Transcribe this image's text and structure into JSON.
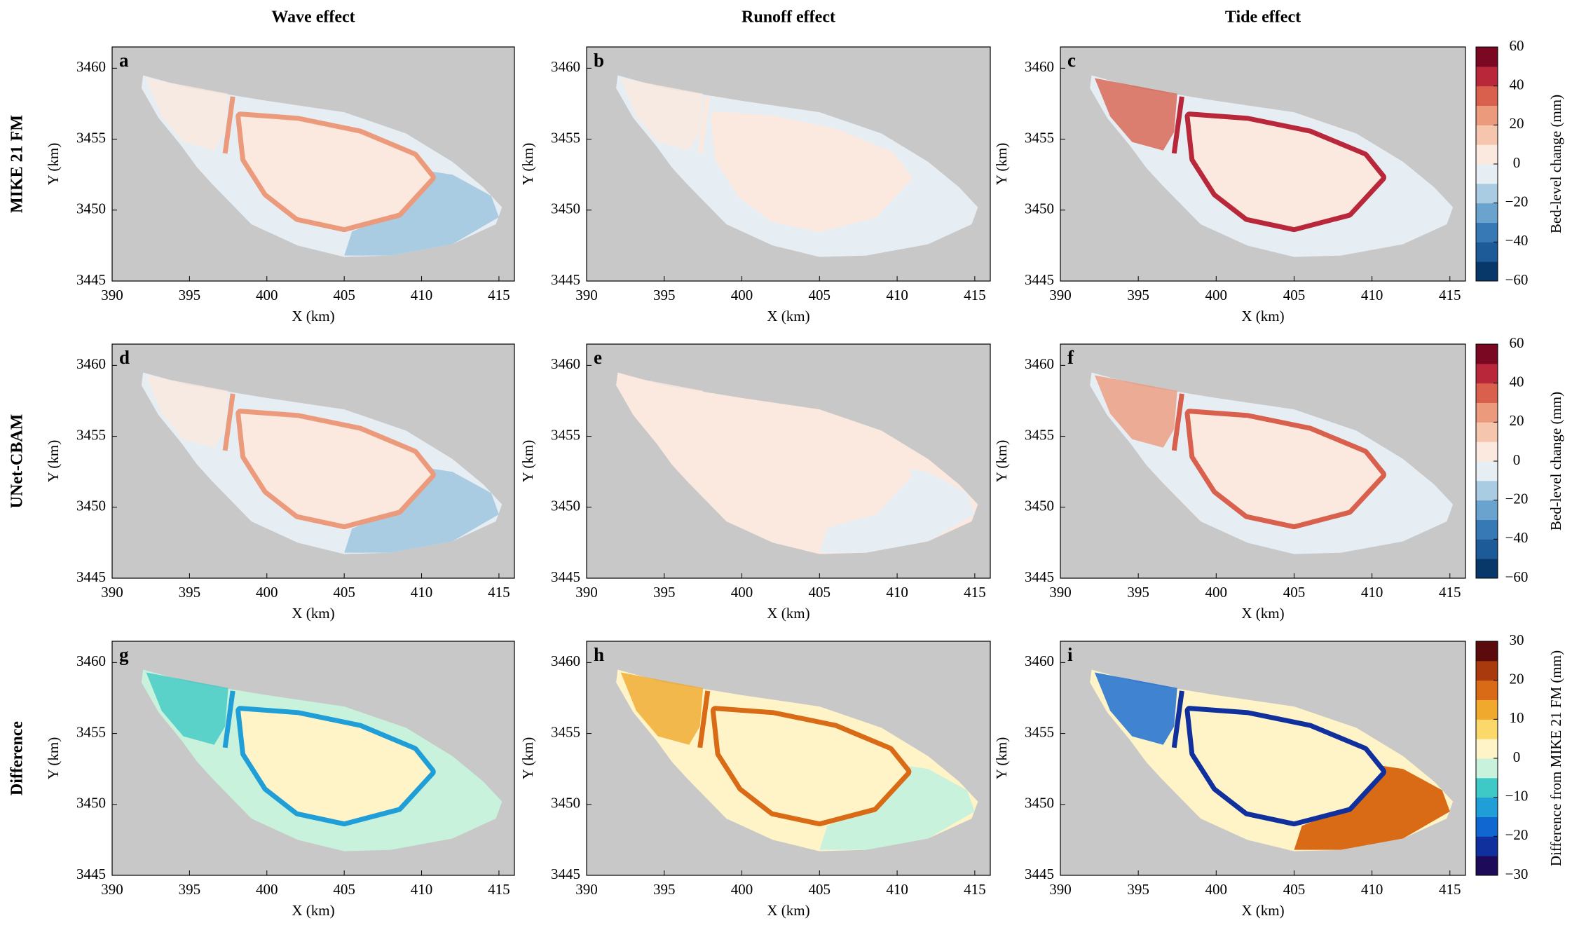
{
  "column_titles": [
    "Wave effect",
    "Runoff effect",
    "Tide effect"
  ],
  "row_labels": [
    "MIKE 21 FM",
    "UNet-CBAM",
    "Difference"
  ],
  "chart_data": [
    {
      "type": "contour",
      "panel": "a",
      "xlabel": "X (km)",
      "ylabel": "Y (km)",
      "xlim": [
        390,
        416
      ],
      "ylim": [
        3445,
        3461.5
      ],
      "xticks": [
        390,
        395,
        400,
        405,
        410,
        415
      ],
      "yticks": [
        3445,
        3450,
        3455,
        3460
      ]
    },
    {
      "type": "contour",
      "panel": "b",
      "xlabel": "X (km)",
      "ylabel": "Y (km)",
      "xlim": [
        390,
        416
      ],
      "ylim": [
        3445,
        3461.5
      ],
      "xticks": [
        390,
        395,
        400,
        405,
        410,
        415
      ],
      "yticks": [
        3445,
        3450,
        3455,
        3460
      ]
    },
    {
      "type": "contour",
      "panel": "c",
      "xlabel": "X (km)",
      "ylabel": "Y (km)",
      "xlim": [
        390,
        416
      ],
      "ylim": [
        3445,
        3461.5
      ],
      "xticks": [
        390,
        395,
        400,
        405,
        410,
        415
      ],
      "yticks": [
        3445,
        3450,
        3455,
        3460
      ]
    },
    {
      "type": "contour",
      "panel": "d",
      "xlabel": "X (km)",
      "ylabel": "Y (km)",
      "xlim": [
        390,
        416
      ],
      "ylim": [
        3445,
        3461.5
      ],
      "xticks": [
        390,
        395,
        400,
        405,
        410,
        415
      ],
      "yticks": [
        3445,
        3450,
        3455,
        3460
      ]
    },
    {
      "type": "contour",
      "panel": "e",
      "xlabel": "X (km)",
      "ylabel": "Y (km)",
      "xlim": [
        390,
        416
      ],
      "ylim": [
        3445,
        3461.5
      ],
      "xticks": [
        390,
        395,
        400,
        405,
        410,
        415
      ],
      "yticks": [
        3445,
        3450,
        3455,
        3460
      ]
    },
    {
      "type": "contour",
      "panel": "f",
      "xlabel": "X (km)",
      "ylabel": "Y (km)",
      "xlim": [
        390,
        416
      ],
      "ylim": [
        3445,
        3461.5
      ],
      "xticks": [
        390,
        395,
        400,
        405,
        410,
        415
      ],
      "yticks": [
        3445,
        3450,
        3455,
        3460
      ]
    },
    {
      "type": "contour",
      "panel": "g",
      "xlabel": "X (km)",
      "ylabel": "Y (km)",
      "xlim": [
        390,
        416
      ],
      "ylim": [
        3445,
        3461.5
      ],
      "xticks": [
        390,
        395,
        400,
        405,
        410,
        415
      ],
      "yticks": [
        3445,
        3450,
        3455,
        3460
      ]
    },
    {
      "type": "contour",
      "panel": "h",
      "xlabel": "X (km)",
      "ylabel": "Y (km)",
      "xlim": [
        390,
        416
      ],
      "ylim": [
        3445,
        3461.5
      ],
      "xticks": [
        390,
        395,
        400,
        405,
        410,
        415
      ],
      "yticks": [
        3445,
        3450,
        3455,
        3460
      ]
    },
    {
      "type": "contour",
      "panel": "i",
      "xlabel": "X (km)",
      "ylabel": "Y (km)",
      "xlim": [
        390,
        416
      ],
      "ylim": [
        3445,
        3461.5
      ],
      "xticks": [
        390,
        395,
        400,
        405,
        410,
        415
      ],
      "yticks": [
        3445,
        3450,
        3455,
        3460
      ]
    }
  ],
  "colorbars": [
    {
      "label": "Bed-level change (mm)",
      "lim": [
        -60,
        60
      ],
      "ticks": [
        {
          "value": -60,
          "label": "−60"
        },
        {
          "value": -40,
          "label": "−40"
        },
        {
          "value": -20,
          "label": "−20"
        },
        0,
        20,
        40,
        60
      ],
      "colors": [
        "#08386a",
        "#1c5b97",
        "#3679b4",
        "#6aa3cd",
        "#a9cce3",
        "#e6eef3",
        "#fbe8df",
        "#f6c5ad",
        "#ec9a7c",
        "#d8604d",
        "#b8283a",
        "#7a0822"
      ]
    },
    {
      "label": "Bed-level change (mm)",
      "lim": [
        -60,
        60
      ],
      "ticks": [
        {
          "value": -60,
          "label": "−60"
        },
        {
          "value": -40,
          "label": "−40"
        },
        {
          "value": -20,
          "label": "−20"
        },
        0,
        20,
        40,
        60
      ],
      "colors": [
        "#08386a",
        "#1c5b97",
        "#3679b4",
        "#6aa3cd",
        "#a9cce3",
        "#e6eef3",
        "#fbe8df",
        "#f6c5ad",
        "#ec9a7c",
        "#d8604d",
        "#b8283a",
        "#7a0822"
      ]
    },
    {
      "label": "Difference from MIKE 21 FM (mm)",
      "lim": [
        -30,
        30
      ],
      "ticks": [
        {
          "value": -30,
          "label": "−30"
        },
        {
          "value": -20,
          "label": "−20"
        },
        {
          "value": -10,
          "label": "−10"
        },
        0,
        10,
        20,
        30
      ],
      "colors": [
        "#1d0b5a",
        "#10309e",
        "#1067d2",
        "#1f9ed8",
        "#3fc9c6",
        "#c9f2dc",
        "#fff4c8",
        "#fbd86a",
        "#f0a92c",
        "#d96a16",
        "#a93a0d",
        "#5b0b0b"
      ]
    }
  ]
}
